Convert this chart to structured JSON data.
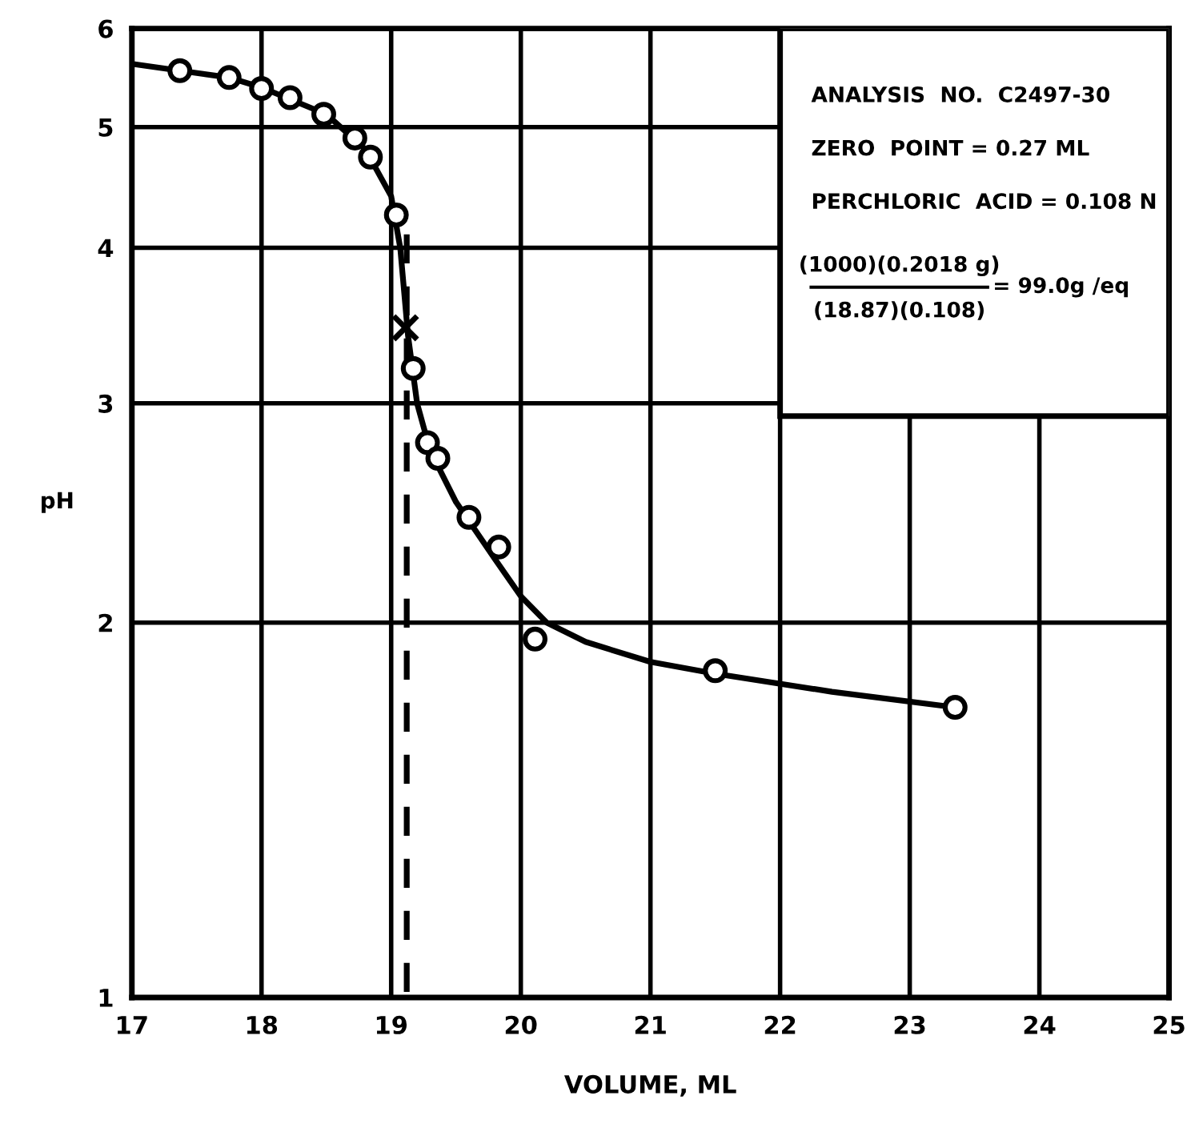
{
  "chart_data": {
    "type": "scatter",
    "xlabel": "VOLUME, ML",
    "ylabel": "pH",
    "log": "y",
    "xlim": [
      17,
      25
    ],
    "xticks": [
      17,
      18,
      19,
      20,
      21,
      22,
      23,
      24,
      25
    ],
    "ylim": [
      1,
      6
    ],
    "yticks": [
      1,
      2,
      3,
      4,
      5,
      6
    ],
    "grid": true,
    "legend": false,
    "series": [
      {
        "type": "line",
        "color": "#000000",
        "marker": "none",
        "line_style": "solid",
        "x": [
          17,
          17.37,
          17.75,
          18.0,
          18.5,
          18.8,
          19.0,
          19.07,
          19.13,
          19.2,
          19.3,
          19.5,
          19.8,
          20.0,
          20.2,
          20.5,
          21.0,
          21.5,
          22.4,
          23.35
        ],
        "values": [
          5.62,
          5.55,
          5.48,
          5.38,
          5.12,
          4.8,
          4.4,
          4.0,
          3.4,
          3.0,
          2.75,
          2.5,
          2.25,
          2.1,
          2.0,
          1.93,
          1.86,
          1.82,
          1.76,
          1.71
        ]
      },
      {
        "type": "line",
        "color": "#000000",
        "marker": "none",
        "line_style": "dashed",
        "x": [
          19.12,
          19.12
        ],
        "values": [
          4.1,
          1.0
        ]
      },
      {
        "color": "#000000",
        "marker": "circle",
        "x": [
          17.37,
          17.75,
          18.0,
          18.22,
          18.48,
          18.72,
          18.84,
          19.04,
          19.17,
          19.28,
          19.36,
          19.6,
          19.83,
          20.11,
          21.5,
          23.35
        ],
        "values": [
          5.55,
          5.48,
          5.37,
          5.28,
          5.12,
          4.9,
          4.73,
          4.25,
          3.2,
          2.79,
          2.71,
          2.43,
          2.3,
          1.94,
          1.83,
          1.71
        ]
      },
      {
        "type": "scatter",
        "color": "#000000",
        "marker": "cross",
        "x": [
          19.11
        ],
        "values": [
          3.45
        ]
      }
    ],
    "annotations": [
      "ANALYSIS  NO.  C2497-30",
      "ZERO  POINT = 0.27 ML",
      "PERCHLORIC  ACID = 0.108 N",
      "(1000)(0.2018 g)",
      "(18.87)(0.108)",
      "= 99.0g /eq"
    ]
  }
}
